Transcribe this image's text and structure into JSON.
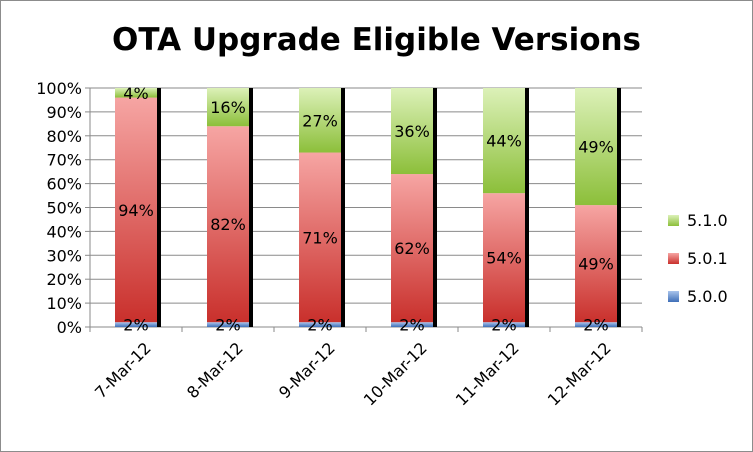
{
  "chart_data": {
    "type": "bar",
    "stacked": true,
    "title": "OTA Upgrade Eligible Versions",
    "xlabel": "",
    "ylabel": "",
    "ylim": [
      0,
      100
    ],
    "y_ticks": [
      "0%",
      "10%",
      "20%",
      "30%",
      "40%",
      "50%",
      "60%",
      "70%",
      "80%",
      "90%",
      "100%"
    ],
    "grid": true,
    "legend_position": "right",
    "categories": [
      "7-Mar-12",
      "8-Mar-12",
      "9-Mar-12",
      "10-Mar-12",
      "11-Mar-12",
      "12-Mar-12"
    ],
    "series": [
      {
        "name": "5.0.0",
        "values": [
          2,
          2,
          2,
          2,
          2,
          2
        ],
        "labels": [
          "2%",
          "2%",
          "2%",
          "2%",
          "2%",
          "2%"
        ],
        "color": "#4f81bd"
      },
      {
        "name": "5.0.1",
        "values": [
          94,
          82,
          71,
          62,
          54,
          49
        ],
        "labels": [
          "94%",
          "82%",
          "71%",
          "62%",
          "54%",
          "49%"
        ],
        "color": "#c0504d"
      },
      {
        "name": "5.1.0",
        "values": [
          4,
          16,
          27,
          36,
          44,
          49
        ],
        "labels": [
          "4%",
          "16%",
          "27%",
          "36%",
          "44%",
          "49%"
        ],
        "color": "#9bbb59"
      }
    ]
  }
}
